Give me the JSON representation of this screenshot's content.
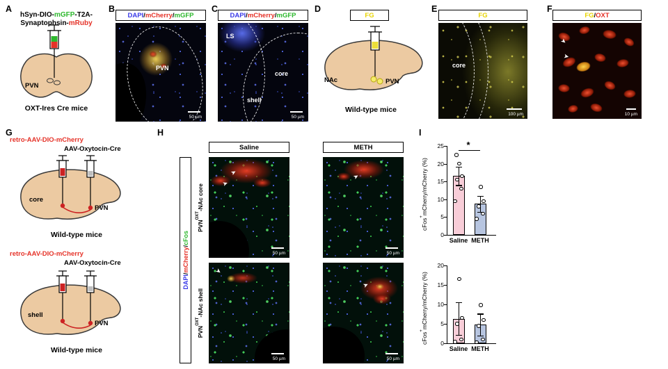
{
  "glyphs": {
    "arrow": "➤"
  },
  "panels": {
    "a": {
      "label": "A",
      "construct_line1_parts": [
        {
          "text": "hSyn-DIO-",
          "color": "#000000"
        },
        {
          "text": "mGFP",
          "color": "#2eb82e"
        },
        {
          "text": "-T2A-",
          "color": "#000000"
        }
      ],
      "construct_line2_parts": [
        {
          "text": "Synaptophsin-",
          "color": "#000000"
        },
        {
          "text": "mRuby",
          "color": "#e53228"
        }
      ],
      "region_label": "PVN",
      "mouse_label": "OXT-Ires Cre mice"
    },
    "b": {
      "label": "B",
      "header_parts": [
        {
          "text": "DAPI",
          "color": "#3a3ae8"
        },
        {
          "text": "/",
          "color": "#000000"
        },
        {
          "text": "mCherry",
          "color": "#e53228"
        },
        {
          "text": "/",
          "color": "#000000"
        },
        {
          "text": "mGFP",
          "color": "#2eb82e"
        }
      ],
      "region_label": "PVN",
      "scale_label": "50 µm"
    },
    "c": {
      "label": "C",
      "header_parts": [
        {
          "text": "DAPI",
          "color": "#3a3ae8"
        },
        {
          "text": "/",
          "color": "#000000"
        },
        {
          "text": "mCherry",
          "color": "#e53228"
        },
        {
          "text": "/",
          "color": "#000000"
        },
        {
          "text": "mGFP",
          "color": "#2eb82e"
        }
      ],
      "ls_label": "LS",
      "core_label": "core",
      "shell_label": "shell",
      "scale_label": "50 µm"
    },
    "d": {
      "label": "D",
      "header_parts": [
        {
          "text": "FG",
          "color": "#e8d400"
        }
      ],
      "nac_label": "NAc",
      "pvn_label": "PVN",
      "mouse_label": "Wild-type mice"
    },
    "e": {
      "label": "E",
      "header_parts": [
        {
          "text": "FG",
          "color": "#e8d400"
        }
      ],
      "core_label": "core",
      "scale_label": "100 µm"
    },
    "f": {
      "label": "F",
      "header_parts": [
        {
          "text": "FG",
          "color": "#e8d400"
        },
        {
          "text": "/",
          "color": "#000000"
        },
        {
          "text": "OXT",
          "color": "#e53228"
        }
      ],
      "scale_label": "10 µm"
    },
    "g": {
      "label": "G",
      "top": {
        "virus_retro_parts": [
          {
            "text": "retro-AAV-DIO-mCherry",
            "color": "#e53228"
          }
        ],
        "virus_cre_parts": [
          {
            "text": "AAV-Oxytocin-Cre",
            "color": "#000000"
          }
        ],
        "site_label": "core",
        "pvn_label": "PVN",
        "mouse_label": "Wild-type mice"
      },
      "bottom": {
        "virus_retro_parts": [
          {
            "text": "retro-AAV-DIO-mCherry",
            "color": "#e53228"
          }
        ],
        "virus_cre_parts": [
          {
            "text": "AAV-Oxytocin-Cre",
            "color": "#000000"
          }
        ],
        "site_label": "shell",
        "pvn_label": "PVN",
        "mouse_label": "Wild-type mice"
      }
    },
    "h": {
      "label": "H",
      "col_headers": [
        "Saline",
        "METH"
      ],
      "side_label_parts": [
        {
          "text": "DAPI",
          "color": "#3a3ae8"
        },
        {
          "text": "/",
          "color": "#000000"
        },
        {
          "text": "mCherry",
          "color": "#e53228"
        },
        {
          "text": "/",
          "color": "#000000"
        },
        {
          "text": "cFos",
          "color": "#2eb82e"
        }
      ],
      "row_labels_parts": [
        [
          {
            "text": "PVN"
          },
          {
            "text": "OXT",
            "sup": true
          },
          {
            "text": "-NAc core"
          }
        ],
        [
          {
            "text": "PVN"
          },
          {
            "text": "OXT",
            "sup": true
          },
          {
            "text": "-NAc shell"
          }
        ]
      ],
      "scale_label": "50 µm"
    },
    "i": {
      "label": "I",
      "ylabel_parts": [
        {
          "text": "cFos"
        },
        {
          "text": "+",
          "sup": true
        },
        {
          "text": "mCherry/mCherry (%)"
        }
      ]
    }
  },
  "chart_data": [
    {
      "type": "bar",
      "title": "",
      "ylabel": "cFos+mCherry/mCherry (%)",
      "categories": [
        "Saline",
        "METH"
      ],
      "values": [
        16.6,
        8.7
      ],
      "sem": [
        2.6,
        2.2
      ],
      "points": [
        [
          9.5,
          13,
          15.5,
          16.5,
          20,
          22.5
        ],
        [
          4.5,
          6,
          8,
          9.5,
          13.5
        ]
      ],
      "ylim": [
        0,
        25
      ],
      "yticks": [
        0,
        5,
        10,
        15,
        20,
        25
      ],
      "bar_colors": [
        "#f8cdd8",
        "#b7c5e0"
      ],
      "grid": false,
      "significance": {
        "label": "*",
        "y": 23.8
      }
    },
    {
      "type": "bar",
      "title": "",
      "ylabel": "cFos+mCherry/mCherry (%)",
      "categories": [
        "Saline",
        "METH"
      ],
      "values": [
        6.3,
        4.8
      ],
      "sem": [
        4.2,
        2.8
      ],
      "points": [
        [
          0.4,
          1,
          5,
          6.5,
          16.5
        ],
        [
          0.3,
          1,
          4.5,
          6,
          9.8
        ]
      ],
      "ylim": [
        0,
        20
      ],
      "yticks": [
        0,
        5,
        10,
        15,
        20
      ],
      "bar_colors": [
        "#f8cdd8",
        "#b7c5e0"
      ],
      "grid": false
    }
  ]
}
